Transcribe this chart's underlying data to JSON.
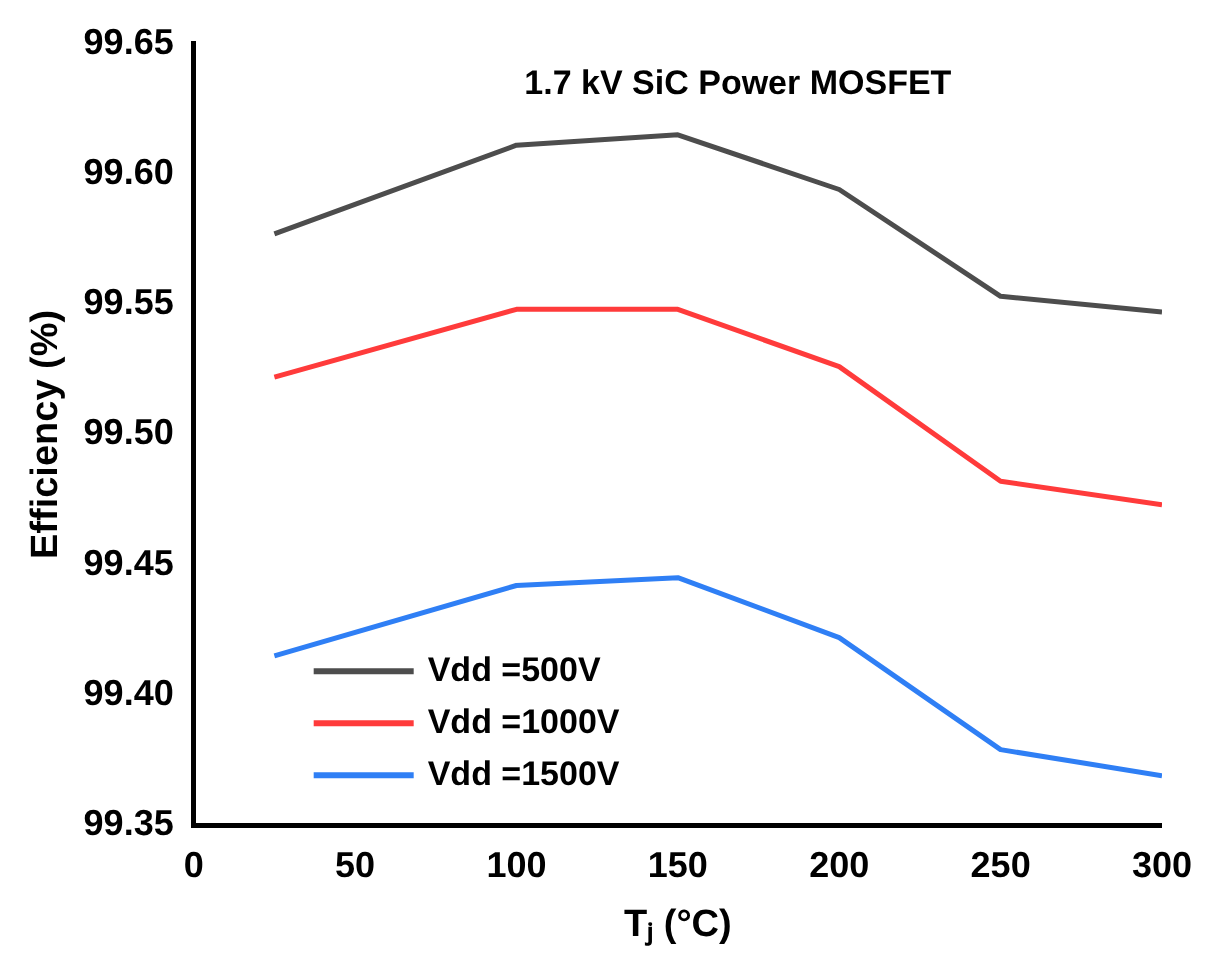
{
  "chart_data": {
    "type": "line",
    "title": "1.7 kV SiC Power MOSFET",
    "xlabel": "Tⱼ (°C)",
    "ylabel": "Efficiency (%)",
    "x": [
      25,
      100,
      150,
      200,
      250,
      300
    ],
    "series": [
      {
        "name": "Vdd =500V",
        "color": "#4d4d4d",
        "values": [
          99.577,
          99.611,
          99.615,
          99.594,
          99.553,
          99.547
        ]
      },
      {
        "name": "Vdd =1000V",
        "color": "#ff3b3b",
        "values": [
          99.522,
          99.548,
          99.548,
          99.526,
          99.482,
          99.473
        ]
      },
      {
        "name": "Vdd =1500V",
        "color": "#2f7ff5",
        "values": [
          99.415,
          99.442,
          99.445,
          99.422,
          99.379,
          99.369
        ]
      }
    ],
    "xlim": [
      0,
      300
    ],
    "xticks": [
      0,
      50,
      100,
      150,
      200,
      250,
      300
    ],
    "ylim": [
      99.35,
      99.65
    ],
    "yticks": [
      {
        "value": 99.35,
        "label": "99.35"
      },
      {
        "value": 99.4,
        "label": "99.40"
      },
      {
        "value": 99.45,
        "label": "99.45"
      },
      {
        "value": 99.5,
        "label": "99.50"
      },
      {
        "value": 99.55,
        "label": "99.55"
      },
      {
        "value": 99.6,
        "label": "99.60"
      },
      {
        "value": 99.65,
        "label": "99.65"
      }
    ],
    "legend": "bottom left",
    "marker": "none",
    "line_style": "solid"
  }
}
